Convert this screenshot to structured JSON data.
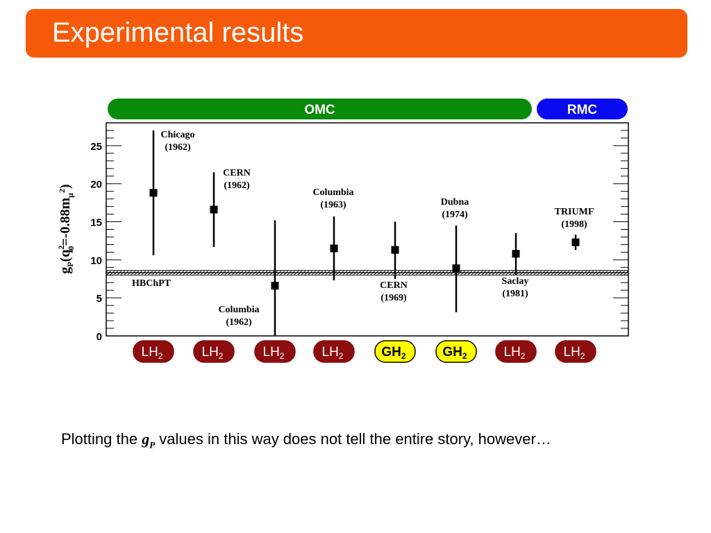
{
  "slide": {
    "title": "Experimental results",
    "caption_before": "Plotting the",
    "caption_symbol": "g",
    "caption_subscript": "P",
    "caption_after": "values in this way does not tell the entire story, however…"
  },
  "colors": {
    "title_bg": "#f55a0a",
    "omc": "#0a8a0a",
    "rmc": "#0a0af0",
    "lh2": "#8b0d0d",
    "gh2": "#ffff00"
  },
  "chart_data": {
    "type": "scatter",
    "ylabel": "g",
    "ylabel_sub": "P",
    "ylabel_rest": "(q",
    "ylabel_sup": "2",
    "ylabel_sub0": "0",
    "ylabel_eq": "=-0.88m",
    "ylabel_mu": "μ",
    "ylabel_sup2": "2",
    "ylabel_close": ")",
    "ylim": [
      0,
      28
    ],
    "yticks": [
      0,
      5,
      10,
      15,
      20,
      25
    ],
    "groups": [
      {
        "label": "OMC",
        "color": "#0a8a0a"
      },
      {
        "label": "RMC",
        "color": "#0a0af0"
      }
    ],
    "theory": {
      "label": "HBChPT",
      "value": 8.3,
      "band": [
        8.0,
        8.6
      ]
    },
    "points": [
      {
        "name": "Chicago",
        "year": "(1962)",
        "y": 18.8,
        "ylow": 10.6,
        "yhigh": 27.0,
        "target": "LH",
        "sub": "2",
        "gas": false
      },
      {
        "name": "CERN",
        "year": "(1962)",
        "y": 16.6,
        "ylow": 11.7,
        "yhigh": 21.5,
        "target": "LH",
        "sub": "2",
        "gas": false
      },
      {
        "name": "Columbia",
        "year": "(1962)",
        "y": 6.6,
        "ylow": 0.0,
        "yhigh": 15.2,
        "target": "LH",
        "sub": "2",
        "gas": false
      },
      {
        "name": "Columbia",
        "year": "(1963)",
        "y": 11.5,
        "ylow": 7.3,
        "yhigh": 15.7,
        "target": "LH",
        "sub": "2",
        "gas": false
      },
      {
        "name": "CERN",
        "year": "(1969)",
        "y": 11.3,
        "ylow": 7.5,
        "yhigh": 15.0,
        "target": "GH",
        "sub": "2",
        "gas": true
      },
      {
        "name": "Dubna",
        "year": "(1974)",
        "y": 8.9,
        "ylow": 3.1,
        "yhigh": 14.5,
        "target": "GH",
        "sub": "2",
        "gas": true
      },
      {
        "name": "Saclay",
        "year": "(1981)",
        "y": 10.8,
        "ylow": 8.0,
        "yhigh": 13.5,
        "target": "LH",
        "sub": "2",
        "gas": false
      },
      {
        "name": "TRIUMF",
        "year": "(1998)",
        "y": 12.3,
        "ylow": 11.3,
        "yhigh": 13.3,
        "target": "LH",
        "sub": "2",
        "gas": false
      }
    ]
  }
}
